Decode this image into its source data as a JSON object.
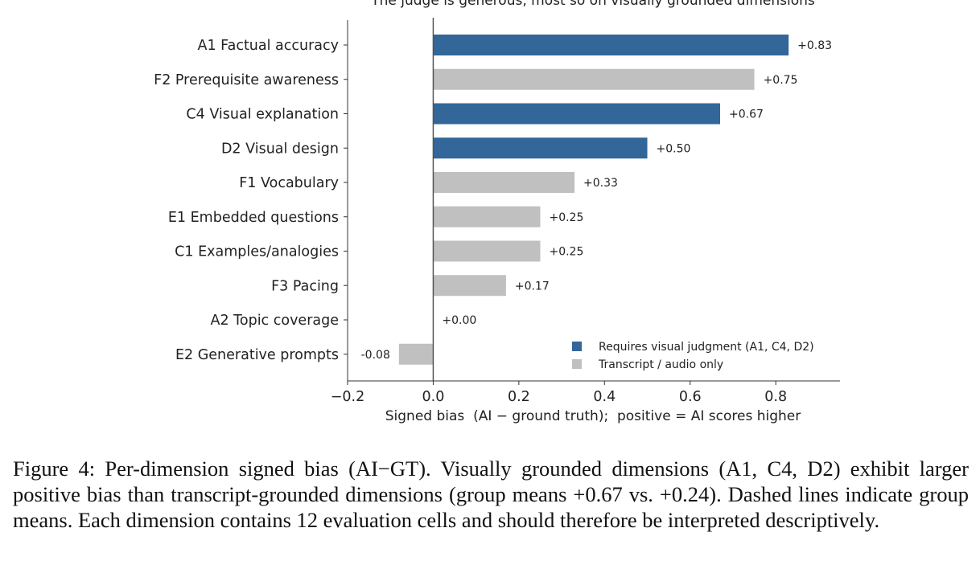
{
  "chart_data": {
    "type": "bar",
    "orientation": "horizontal",
    "title": "The judge is generous, most so on visually grounded dimensions",
    "xlabel": "Signed bias  (AI − ground truth);  positive = AI scores higher",
    "ylabel": "",
    "xlim": [
      -0.2,
      0.95
    ],
    "xticks": [
      -0.2,
      0.0,
      0.2,
      0.4,
      0.6,
      0.8
    ],
    "xtick_labels": [
      "−0.2",
      "0.0",
      "0.2",
      "0.4",
      "0.6",
      "0.8"
    ],
    "grid": false,
    "legend_position": "lower-right",
    "categories": [
      "A1  Factual accuracy",
      "F2  Prerequisite awareness",
      "C4  Visual explanation",
      "D2  Visual design",
      "F1  Vocabulary",
      "E1  Embedded questions",
      "C1  Examples/analogies",
      "F3  Pacing",
      "A2  Topic coverage",
      "E2  Generative prompts"
    ],
    "values": [
      0.83,
      0.75,
      0.67,
      0.5,
      0.33,
      0.25,
      0.25,
      0.17,
      0.0,
      -0.08
    ],
    "value_labels": [
      "+0.83",
      "+0.75",
      "+0.67",
      "+0.50",
      "+0.33",
      "+0.25",
      "+0.25",
      "+0.17",
      "+0.00",
      "-0.08"
    ],
    "groups": [
      "visual",
      "transcript",
      "visual",
      "visual",
      "transcript",
      "transcript",
      "transcript",
      "transcript",
      "transcript",
      "transcript"
    ],
    "legend": [
      {
        "key": "visual",
        "label": "Requires visual judgment (A1, C4, D2)",
        "color": "#336699"
      },
      {
        "key": "transcript",
        "label": "Transcript / audio only",
        "color": "#bfc0bf"
      }
    ]
  },
  "caption": "Figure 4:  Per-dimension signed bias (AI−GT). Visually grounded dimensions (A1, C4, D2) exhibit larger positive bias than transcript-grounded dimensions (group means +0.67 vs. +0.24). Dashed lines indicate group means. Each dimension contains 12 evaluation cells and should therefore be interpreted descriptively."
}
